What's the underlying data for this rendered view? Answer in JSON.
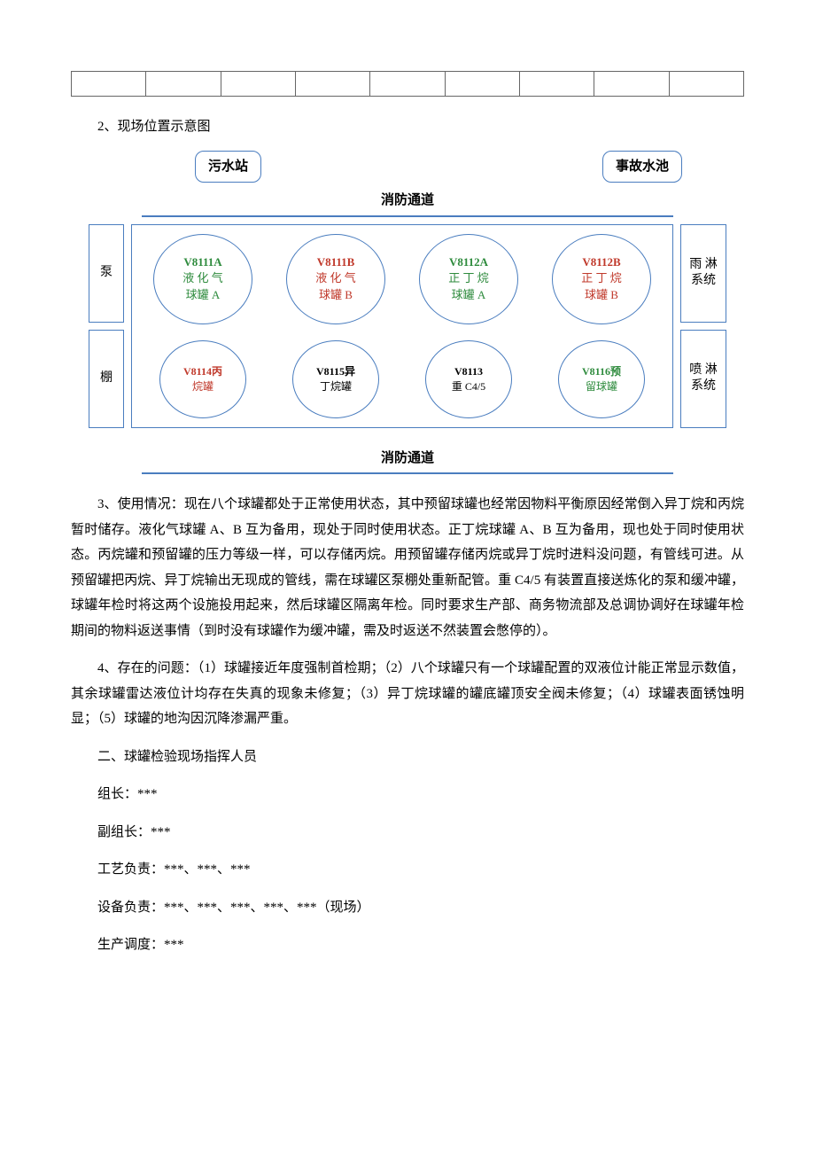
{
  "empty_table": {
    "cols": 9,
    "border_color": "#666666"
  },
  "heading_2": "2、现场位置示意图",
  "diagram": {
    "top_left": "污水站",
    "top_right": "事故水池",
    "lane_top": "消防通道",
    "lane_bottom": "消防通道",
    "side_left_1": "泵",
    "side_left_2": "棚",
    "side_right_1a": "雨 淋",
    "side_right_1b": "系统",
    "side_right_2a": "喷 淋",
    "side_right_2b": "系统",
    "row1": [
      {
        "code": "V8111A",
        "l1": "液 化 气",
        "l2": "球罐 A",
        "colorClass": "c-green"
      },
      {
        "code": "V8111B",
        "l1": "液 化 气",
        "l2": "球罐 B",
        "colorClass": "c-red"
      },
      {
        "code": "V8112A",
        "l1": "正 丁 烷",
        "l2": "球罐 A",
        "colorClass": "c-green"
      },
      {
        "code": "V8112B",
        "l1": "正 丁 烷",
        "l2": "球罐 B",
        "colorClass": "c-red"
      }
    ],
    "row2": [
      {
        "code": "V8114丙",
        "l1": "烷罐",
        "colorClass": "c-red"
      },
      {
        "code": "V8115异",
        "l1": "丁烷罐",
        "colorClass": "c-black"
      },
      {
        "code": "V8113",
        "l1": "重 C4/5",
        "colorClass": "c-black"
      },
      {
        "code": "V8116预",
        "l1": "留球罐",
        "colorClass": "c-green"
      }
    ],
    "colors": {
      "border": "#4a7dbf",
      "green": "#2e8b3d",
      "red": "#c0392b",
      "black": "#000000"
    }
  },
  "para_3": "3、使用情况：现在八个球罐都处于正常使用状态，其中预留球罐也经常因物料平衡原因经常倒入异丁烷和丙烷暂时储存。液化气球罐 A、B 互为备用，现处于同时使用状态。正丁烷球罐 A、B 互为备用，现也处于同时使用状态。丙烷罐和预留罐的压力等级一样，可以存储丙烷。用预留罐存储丙烷或异丁烷时进料没问题，有管线可进。从预留罐把丙烷、异丁烷输出无现成的管线，需在球罐区泵棚处重新配管。重 C4/5 有装置直接送炼化的泵和缓冲罐，球罐年检时将这两个设施投用起来，然后球罐区隔离年检。同时要求生产部、商务物流部及总调协调好在球罐年检期间的物料返送事情（到时没有球罐作为缓冲罐，需及时返送不然装置会憋停的）。",
  "para_4": "4、存在的问题：（1）球罐接近年度强制首检期；（2）八个球罐只有一个球罐配置的双液位计能正常显示数值，其余球罐雷达液位计均存在失真的现象未修复；（3）异丁烷球罐的罐底罐顶安全阀未修复；（4）球罐表面锈蚀明显；（5）球罐的地沟因沉降渗漏严重。",
  "section_2": "二、球罐检验现场指挥人员",
  "roles": {
    "r1": "组长：***",
    "r2": "副组长：***",
    "r3": "工艺负责：***、***、***",
    "r4": "设备负责：***、***、***、***、***（现场）",
    "r5": "生产调度：***"
  }
}
